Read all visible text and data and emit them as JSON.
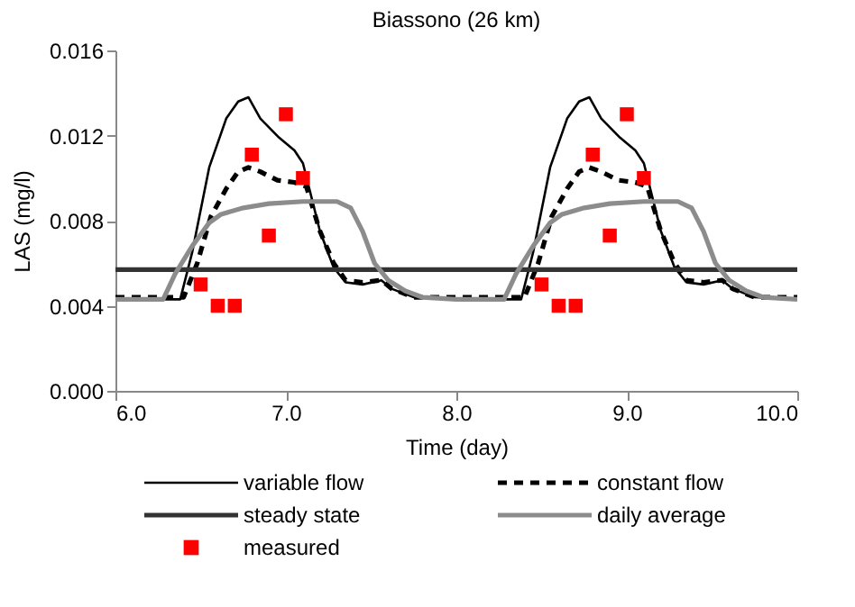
{
  "chart_data": {
    "type": "line",
    "title": "Biassono (26 km)",
    "xlabel": "Time (day)",
    "ylabel": "LAS (mg/l)",
    "xlim": [
      6.0,
      10.0
    ],
    "xticks": [
      {
        "value": 6,
        "label": "6.0"
      },
      {
        "value": 7,
        "label": "7.0"
      },
      {
        "value": 8,
        "label": "8.0"
      },
      {
        "value": 9,
        "label": "9.0"
      },
      {
        "value": 10,
        "label": "10.0"
      }
    ],
    "ylim": [
      0,
      0.016
    ],
    "yticks": [
      {
        "value": 0,
        "label": "0.000"
      },
      {
        "value": 0.004,
        "label": "0.004"
      },
      {
        "value": 0.008,
        "label": "0.008"
      },
      {
        "value": 0.012,
        "label": "0.012"
      },
      {
        "value": 0.016,
        "label": "0.016"
      }
    ],
    "grid": false,
    "legend": "bottom",
    "series": [
      {
        "name": "variable flow",
        "type": "line",
        "line_style": "solid",
        "color": "#000000",
        "x": [
          6.0,
          6.38,
          6.45,
          6.55,
          6.65,
          6.72,
          6.78,
          6.85,
          6.96,
          7.05,
          7.1,
          7.2,
          7.28,
          7.35,
          7.45,
          7.56,
          7.62,
          7.75,
          8.0,
          8.38,
          8.45,
          8.55,
          8.65,
          8.72,
          8.78,
          8.85,
          8.96,
          9.05,
          9.1,
          9.2,
          9.28,
          9.35,
          9.45,
          9.56,
          9.62,
          9.75,
          10.0
        ],
        "values": [
          0.0043,
          0.0043,
          0.0065,
          0.0105,
          0.0128,
          0.0136,
          0.0138,
          0.0128,
          0.0119,
          0.0113,
          0.0107,
          0.0075,
          0.0058,
          0.0051,
          0.005,
          0.0052,
          0.0048,
          0.0044,
          0.0043,
          0.0043,
          0.0065,
          0.0105,
          0.0128,
          0.0136,
          0.0138,
          0.0128,
          0.0119,
          0.0113,
          0.0107,
          0.0075,
          0.0058,
          0.0051,
          0.005,
          0.0052,
          0.0048,
          0.0044,
          0.0043
        ]
      },
      {
        "name": "constant flow",
        "type": "line",
        "line_style": "dashed",
        "color": "#000000",
        "x": [
          6.0,
          6.4,
          6.48,
          6.56,
          6.65,
          6.72,
          6.78,
          6.85,
          6.95,
          7.05,
          7.12,
          7.2,
          7.28,
          7.35,
          7.45,
          7.56,
          7.62,
          7.75,
          8.0,
          8.4,
          8.48,
          8.56,
          8.65,
          8.72,
          8.78,
          8.85,
          8.95,
          9.05,
          9.12,
          9.2,
          9.28,
          9.35,
          9.45,
          9.56,
          9.62,
          9.75,
          10.0
        ],
        "values": [
          0.0044,
          0.0044,
          0.006,
          0.0082,
          0.0095,
          0.0103,
          0.0105,
          0.0103,
          0.0099,
          0.0098,
          0.0096,
          0.0075,
          0.006,
          0.0052,
          0.0051,
          0.0052,
          0.0048,
          0.0044,
          0.0044,
          0.0044,
          0.006,
          0.0082,
          0.0095,
          0.0103,
          0.0105,
          0.0103,
          0.0099,
          0.0098,
          0.0096,
          0.0075,
          0.006,
          0.0052,
          0.0051,
          0.0052,
          0.0048,
          0.0044,
          0.0044
        ]
      },
      {
        "name": "steady state",
        "type": "line",
        "line_style": "solid",
        "color": "#333333",
        "x": [
          6.0,
          10.0
        ],
        "values": [
          0.0057,
          0.0057
        ]
      },
      {
        "name": "daily average",
        "type": "line",
        "line_style": "solid",
        "color": "#8c8c8c",
        "x": [
          6.0,
          6.28,
          6.35,
          6.45,
          6.55,
          6.62,
          6.75,
          6.9,
          7.1,
          7.3,
          7.38,
          7.45,
          7.52,
          7.6,
          7.7,
          7.8,
          8.0,
          8.28,
          8.35,
          8.45,
          8.55,
          8.62,
          8.75,
          8.9,
          9.1,
          9.3,
          9.38,
          9.45,
          9.52,
          9.6,
          9.7,
          9.8,
          10.0
        ],
        "values": [
          0.0043,
          0.0043,
          0.0055,
          0.0068,
          0.0079,
          0.0083,
          0.0086,
          0.0088,
          0.0089,
          0.0089,
          0.0086,
          0.0075,
          0.006,
          0.0052,
          0.0047,
          0.0044,
          0.0043,
          0.0043,
          0.0055,
          0.0068,
          0.0079,
          0.0083,
          0.0086,
          0.0088,
          0.0089,
          0.0089,
          0.0086,
          0.0075,
          0.006,
          0.0052,
          0.0047,
          0.0044,
          0.0043
        ]
      },
      {
        "name": "measured",
        "type": "scatter",
        "marker": "square",
        "color": "#ff0000",
        "x": [
          6.5,
          6.6,
          6.7,
          6.8,
          6.9,
          7.0,
          7.1,
          8.5,
          8.6,
          8.7,
          8.8,
          8.9,
          9.0,
          9.1
        ],
        "values": [
          0.005,
          0.004,
          0.004,
          0.0111,
          0.0073,
          0.013,
          0.01,
          0.005,
          0.004,
          0.004,
          0.0111,
          0.0073,
          0.013,
          0.01
        ]
      }
    ]
  }
}
